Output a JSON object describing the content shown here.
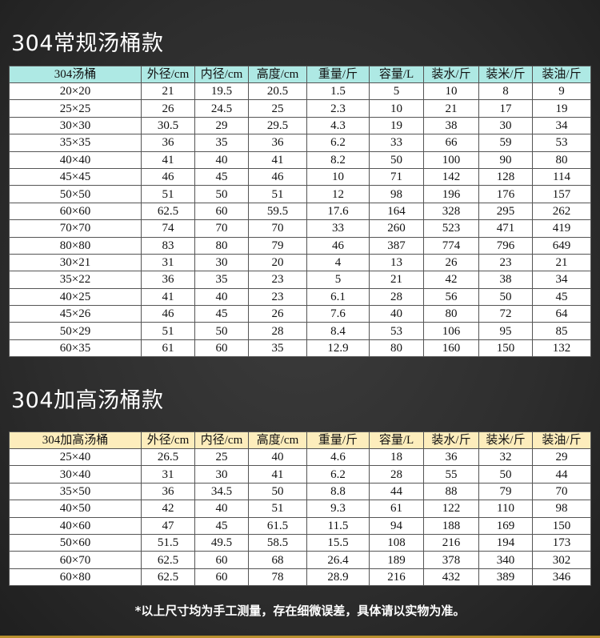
{
  "section1": {
    "title": "304常规汤桶款",
    "headers": [
      "304汤桶",
      "外径/cm",
      "内径/cm",
      "高度/cm",
      "重量/斤",
      "容量/L",
      "装水/斤",
      "装米/斤",
      "装油/斤"
    ],
    "header_color": "#aee9e4",
    "rows": [
      [
        "20×20",
        "21",
        "19.5",
        "20.5",
        "1.5",
        "5",
        "10",
        "8",
        "9"
      ],
      [
        "25×25",
        "26",
        "24.5",
        "25",
        "2.3",
        "10",
        "21",
        "17",
        "19"
      ],
      [
        "30×30",
        "30.5",
        "29",
        "29.5",
        "4.3",
        "19",
        "38",
        "30",
        "34"
      ],
      [
        "35×35",
        "36",
        "35",
        "36",
        "6.2",
        "33",
        "66",
        "59",
        "53"
      ],
      [
        "40×40",
        "41",
        "40",
        "41",
        "8.2",
        "50",
        "100",
        "90",
        "80"
      ],
      [
        "45×45",
        "46",
        "45",
        "46",
        "10",
        "71",
        "142",
        "128",
        "114"
      ],
      [
        "50×50",
        "51",
        "50",
        "51",
        "12",
        "98",
        "196",
        "176",
        "157"
      ],
      [
        "60×60",
        "62.5",
        "60",
        "59.5",
        "17.6",
        "164",
        "328",
        "295",
        "262"
      ],
      [
        "70×70",
        "74",
        "70",
        "70",
        "33",
        "260",
        "523",
        "471",
        "419"
      ],
      [
        "80×80",
        "83",
        "80",
        "79",
        "46",
        "387",
        "774",
        "796",
        "649"
      ],
      [
        "30×21",
        "31",
        "30",
        "20",
        "4",
        "13",
        "26",
        "23",
        "21"
      ],
      [
        "35×22",
        "36",
        "35",
        "23",
        "5",
        "21",
        "42",
        "38",
        "34"
      ],
      [
        "40×25",
        "41",
        "40",
        "23",
        "6.1",
        "28",
        "56",
        "50",
        "45"
      ],
      [
        "45×26",
        "46",
        "45",
        "26",
        "7.6",
        "40",
        "80",
        "72",
        "64"
      ],
      [
        "50×29",
        "51",
        "50",
        "28",
        "8.4",
        "53",
        "106",
        "95",
        "85"
      ],
      [
        "60×35",
        "61",
        "60",
        "35",
        "12.9",
        "80",
        "160",
        "150",
        "132"
      ]
    ]
  },
  "section2": {
    "title": "304加高汤桶款",
    "headers": [
      "304加高汤桶",
      "外径/cm",
      "内径/cm",
      "高度/cm",
      "重量/斤",
      "容量/L",
      "装水/斤",
      "装米/斤",
      "装油/斤"
    ],
    "header_color": "#fdedbc",
    "rows": [
      [
        "25×40",
        "26.5",
        "25",
        "40",
        "4.6",
        "18",
        "36",
        "32",
        "29"
      ],
      [
        "30×40",
        "31",
        "30",
        "41",
        "6.2",
        "28",
        "55",
        "50",
        "44"
      ],
      [
        "35×50",
        "36",
        "34.5",
        "50",
        "8.8",
        "44",
        "88",
        "79",
        "70"
      ],
      [
        "40×50",
        "42",
        "40",
        "51",
        "9.3",
        "61",
        "122",
        "110",
        "98"
      ],
      [
        "40×60",
        "47",
        "45",
        "61.5",
        "11.5",
        "94",
        "188",
        "169",
        "150"
      ],
      [
        "50×60",
        "51.5",
        "49.5",
        "58.5",
        "15.5",
        "108",
        "216",
        "194",
        "173"
      ],
      [
        "60×70",
        "62.5",
        "60",
        "68",
        "26.4",
        "189",
        "378",
        "340",
        "302"
      ],
      [
        "60×80",
        "62.5",
        "60",
        "78",
        "28.9",
        "216",
        "432",
        "389",
        "346"
      ]
    ]
  },
  "note": "*以上尺寸均为手工测量，存在细微误差，具体请以实物为准。"
}
